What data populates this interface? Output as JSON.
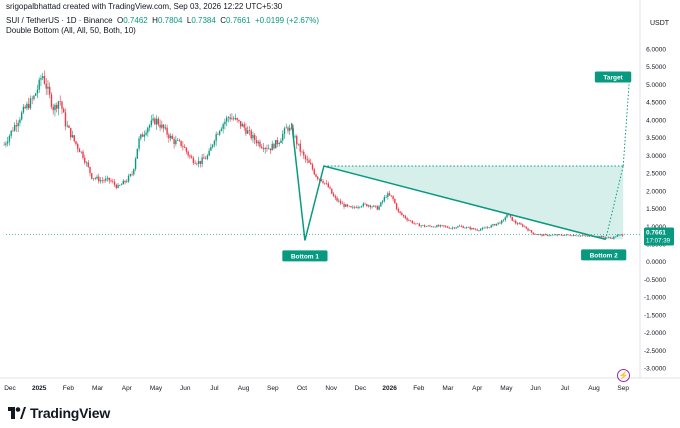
{
  "header": {
    "author_line": "srigopalbhattad created with TradingView.com, Sep 03, 2026 12:22 UTC+5:30",
    "symbol": "SUI / TetherUS · 1D · Binance",
    "ohlc": {
      "o_label": "O",
      "o_value": "0.7462",
      "h_label": "H",
      "h_value": "0.7804",
      "l_label": "L",
      "l_value": "0.7384",
      "c_label": "C",
      "c_value": "0.7661",
      "change": "+0.0199 (+2.67%)"
    },
    "indicator": "Double Bottom (All, All, 50, Both, 10)"
  },
  "footer": {
    "brand": "TradingView"
  },
  "colors": {
    "up": "#089981",
    "down": "#f23645",
    "pattern": "#089981",
    "fill": "rgba(8,153,129,0.16)",
    "dotted": "#089981"
  },
  "chart_data": {
    "type": "candlestick",
    "currency_label": "USDT",
    "y_ticks": [
      "6.0000",
      "5.5000",
      "5.0000",
      "4.5000",
      "4.0000",
      "3.5000",
      "3.0000",
      "2.5000",
      "2.0000",
      "1.5000",
      "1.0000",
      "0.5000",
      "0.0000",
      "-0.5000",
      "-1.0000",
      "-1.5000",
      "-2.0000",
      "-2.5000",
      "-3.0000"
    ],
    "y_tick_values": [
      6,
      5.5,
      5,
      4.5,
      4,
      3.5,
      3,
      2.5,
      2,
      1.5,
      1,
      0.5,
      0,
      -0.5,
      -1,
      -1.5,
      -2,
      -2.5,
      -3
    ],
    "x_ticks": [
      "Dec",
      "2025",
      "Feb",
      "Mar",
      "Apr",
      "May",
      "Jun",
      "Jul",
      "Aug",
      "Sep",
      "Oct",
      "Nov",
      "Dec",
      "2026",
      "Feb",
      "Mar",
      "Apr",
      "May",
      "Jun",
      "Jul",
      "Aug",
      "Sep"
    ],
    "x_tick_months": [
      0,
      1,
      2,
      3,
      4,
      5,
      6,
      7,
      8,
      9,
      10,
      11,
      12,
      13,
      14,
      15,
      16,
      17,
      18,
      19,
      20,
      21
    ],
    "last_price": "0.7661",
    "countdown": "17:07:39",
    "price_path": [
      [
        -0.2,
        3.3
      ],
      [
        0.2,
        3.9
      ],
      [
        0.5,
        4.3
      ],
      [
        0.8,
        4.6
      ],
      [
        1.0,
        5.0
      ],
      [
        1.1,
        5.3
      ],
      [
        1.3,
        4.8
      ],
      [
        1.5,
        4.3
      ],
      [
        1.7,
        4.6
      ],
      [
        1.9,
        3.9
      ],
      [
        2.2,
        3.4
      ],
      [
        2.5,
        3.0
      ],
      [
        2.8,
        2.4
      ],
      [
        3.1,
        2.3
      ],
      [
        3.4,
        2.3
      ],
      [
        3.7,
        2.1
      ],
      [
        4.0,
        2.3
      ],
      [
        4.2,
        2.5
      ],
      [
        4.4,
        3.4
      ],
      [
        4.7,
        3.8
      ],
      [
        5.0,
        4.0
      ],
      [
        5.3,
        3.7
      ],
      [
        5.6,
        3.4
      ],
      [
        5.9,
        3.3
      ],
      [
        6.2,
        2.9
      ],
      [
        6.5,
        2.8
      ],
      [
        6.8,
        3.0
      ],
      [
        7.0,
        3.5
      ],
      [
        7.2,
        3.8
      ],
      [
        7.5,
        4.1
      ],
      [
        7.7,
        4.0
      ],
      [
        8.0,
        3.8
      ],
      [
        8.3,
        3.5
      ],
      [
        8.6,
        3.3
      ],
      [
        8.9,
        3.2
      ],
      [
        9.2,
        3.4
      ],
      [
        9.5,
        3.8
      ],
      [
        9.7,
        3.6
      ],
      [
        9.9,
        3.2
      ],
      [
        10.1,
        2.9
      ],
      [
        10.3,
        2.7
      ],
      [
        10.5,
        2.4
      ],
      [
        10.7,
        2.3
      ],
      [
        10.9,
        2.1
      ],
      [
        11.1,
        1.8
      ],
      [
        11.4,
        1.6
      ],
      [
        11.7,
        1.5
      ],
      [
        12.0,
        1.6
      ],
      [
        12.3,
        1.6
      ],
      [
        12.6,
        1.5
      ],
      [
        12.9,
        1.9
      ],
      [
        13.1,
        1.8
      ],
      [
        13.3,
        1.4
      ],
      [
        13.6,
        1.2
      ],
      [
        13.9,
        1.05
      ],
      [
        14.2,
        1.0
      ],
      [
        14.5,
        1.0
      ],
      [
        14.8,
        1.0
      ],
      [
        15.1,
        0.95
      ],
      [
        15.4,
        1.0
      ],
      [
        15.7,
        0.95
      ],
      [
        16.0,
        0.9
      ],
      [
        16.3,
        0.95
      ],
      [
        16.6,
        1.05
      ],
      [
        16.9,
        1.15
      ],
      [
        17.0,
        1.35
      ],
      [
        17.3,
        1.1
      ],
      [
        17.6,
        1.0
      ],
      [
        17.9,
        0.8
      ],
      [
        18.2,
        0.75
      ],
      [
        18.5,
        0.75
      ],
      [
        18.8,
        0.75
      ],
      [
        19.1,
        0.75
      ],
      [
        19.4,
        0.75
      ],
      [
        19.7,
        0.72
      ],
      [
        20.0,
        0.72
      ],
      [
        20.3,
        0.7
      ],
      [
        20.6,
        0.66
      ],
      [
        20.8,
        0.74
      ],
      [
        21.0,
        0.76
      ]
    ],
    "pattern": {
      "points": [
        {
          "month": 9.65,
          "price": 3.9
        },
        {
          "month": 10.1,
          "price": 0.6
        },
        {
          "month": 10.75,
          "price": 2.7
        },
        {
          "month": 20.4,
          "price": 0.63
        }
      ],
      "neckline": 2.7,
      "target": 5.0,
      "target_month": 21.2,
      "labels": {
        "bottom1": "Bottom 1",
        "bottom2": "Bottom 2",
        "target": "Target"
      }
    }
  }
}
